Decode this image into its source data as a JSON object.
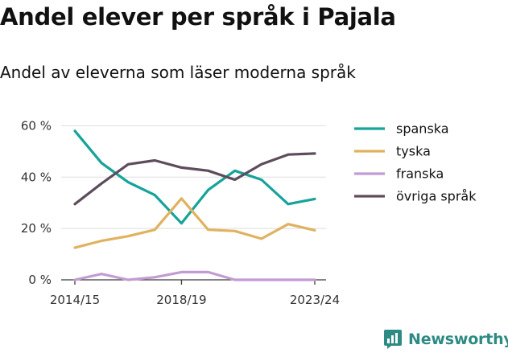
{
  "header": {
    "title": "Andel elever per språk i Pajala",
    "subtitle": "Andel av eleverna som läser moderna språk"
  },
  "brand": {
    "name": "Newsworthy",
    "icon": "bar-chart-logo-icon",
    "color": "#2e8b84"
  },
  "chart_data": {
    "type": "line",
    "x": [
      "2014/15",
      "2015/16",
      "2016/17",
      "2017/18",
      "2018/19",
      "2019/20",
      "2020/21",
      "2021/22",
      "2022/23",
      "2023/24"
    ],
    "x_tick_labels": [
      "2014/15",
      "2018/19",
      "2023/24"
    ],
    "y_ticks": [
      0,
      20,
      40,
      60
    ],
    "y_tick_labels": [
      "0 %",
      "20 %",
      "40 %",
      "60 %"
    ],
    "ylim": [
      0,
      62
    ],
    "grid": true,
    "legend_position": "right",
    "series": [
      {
        "name": "spanska",
        "color": "#16a39a",
        "values": [
          58,
          45.5,
          38,
          33,
          22,
          35,
          42.5,
          39,
          29.5,
          31.5
        ]
      },
      {
        "name": "tyska",
        "color": "#e0b260",
        "values": [
          12.5,
          15.2,
          17,
          19.5,
          31.7,
          19.5,
          19,
          16,
          21.7,
          19.3
        ]
      },
      {
        "name": "franska",
        "color": "#c39bd3",
        "values": [
          0,
          2.3,
          0,
          1,
          3,
          3,
          0,
          0,
          0,
          0
        ]
      },
      {
        "name": "övriga språk",
        "color": "#5d4d5c",
        "values": [
          29.5,
          37.5,
          45,
          46.5,
          43.7,
          42.5,
          39,
          45,
          48.8,
          49.2
        ]
      }
    ]
  }
}
